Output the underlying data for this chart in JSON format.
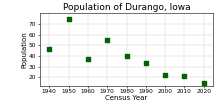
{
  "title": "Population of Durango, Iowa",
  "xlabel": "Census Year",
  "ylabel": "Population",
  "years": [
    1940,
    1950,
    1960,
    1970,
    1980,
    1990,
    2000,
    2010,
    2020
  ],
  "population": [
    46,
    75,
    37,
    55,
    40,
    33,
    22,
    21,
    15
  ],
  "marker_color": "#006400",
  "marker": "s",
  "marker_size": 6,
  "xlim": [
    1935,
    2025
  ],
  "ylim": [
    12,
    80
  ],
  "yticks": [
    20,
    30,
    40,
    50,
    60,
    70
  ],
  "xticks": [
    1940,
    1950,
    1960,
    1970,
    1980,
    1990,
    2000,
    2010,
    2020
  ],
  "grid": true,
  "title_fontsize": 6.5,
  "label_fontsize": 5.0,
  "tick_fontsize": 4.2,
  "background_color": "#ffffff"
}
